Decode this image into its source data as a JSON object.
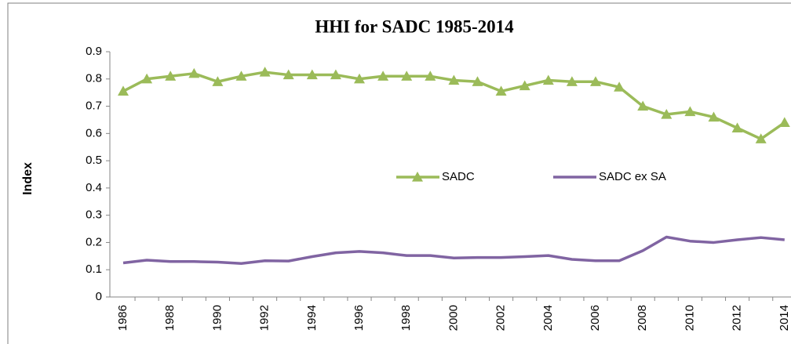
{
  "chart_data": {
    "type": "line",
    "title": "HHI for SADC 1985-2014",
    "y_label": "Index",
    "categories": [
      "1986",
      null,
      "1988",
      null,
      "1990",
      null,
      "1992",
      null,
      "1994",
      null,
      "1996",
      null,
      "1998",
      null,
      "2000",
      null,
      "2002",
      null,
      "2004",
      null,
      "2006",
      null,
      "2008",
      null,
      "2010",
      null,
      "2012",
      null,
      "2014"
    ],
    "series": [
      {
        "name": "SADC",
        "color": "#9bbb59",
        "marker": "triangle",
        "values": [
          0.755,
          0.8,
          0.81,
          0.82,
          0.79,
          0.81,
          0.825,
          0.815,
          0.815,
          0.815,
          0.8,
          0.81,
          0.81,
          0.81,
          0.795,
          0.79,
          0.755,
          0.775,
          0.795,
          0.79,
          0.79,
          0.77,
          0.7,
          0.67,
          0.68,
          0.66,
          0.62,
          0.58,
          0.64
        ]
      },
      {
        "name": "SADC ex SA",
        "color": "#8064a2",
        "marker": "none",
        "values": [
          0.125,
          0.135,
          0.13,
          0.13,
          0.128,
          0.123,
          0.133,
          0.132,
          0.148,
          0.162,
          0.167,
          0.162,
          0.152,
          0.152,
          0.143,
          0.145,
          0.145,
          0.148,
          0.152,
          0.138,
          0.133,
          0.133,
          0.17,
          0.22,
          0.205,
          0.2,
          0.21,
          0.218,
          0.21
        ]
      }
    ],
    "ylim": [
      0,
      0.9
    ],
    "yticks": [
      0,
      0.1,
      0.2,
      0.3,
      0.4,
      0.5,
      0.6,
      0.7,
      0.8,
      0.9
    ],
    "grid": false,
    "legend": "center"
  }
}
